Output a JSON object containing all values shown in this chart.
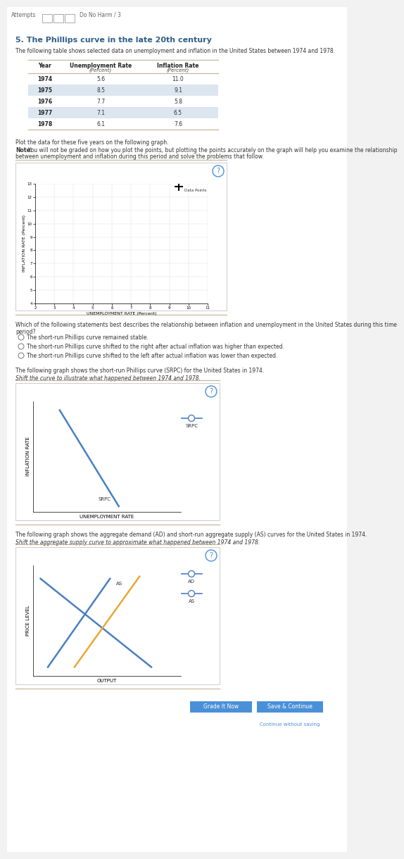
{
  "title": "5. The Phillips curve in the late 20th century",
  "intro_text": "The following table shows selected data on unemployment and inflation in the United States between 1974 and 1978.",
  "table_data": [
    [
      "1974",
      "5.6",
      "11.0"
    ],
    [
      "1975",
      "8.5",
      "9.1"
    ],
    [
      "1976",
      "7.7",
      "5.8"
    ],
    [
      "1977",
      "7.1",
      "6.5"
    ],
    [
      "1978",
      "6.1",
      "7.6"
    ]
  ],
  "highlighted_rows": [
    1,
    3
  ],
  "plot_note": "Plot the data for these five years on the following graph.",
  "bold_note": "Note:",
  "note_text": " You will not be graded on how you plot the points, but plotting the points accurately on the graph will help you examine the relationship between unemployment and inflation during this period and solve the problems that follow.",
  "scatter_xlabel": "UNEMPLOYMENT RATE (Percent)",
  "scatter_ylabel": "INFLATION RATE (Percent)",
  "mc_question": "Which of the following statements best describes the relationship between inflation and unemployment in the United States during this time period?",
  "mc_options": [
    "The short-run Phillips curve remained stable.",
    "The short-run Phillips curve shifted to the right after actual inflation was higher than expected.",
    "The short-run Phillips curve shifted to the left after actual inflation was lower than expected."
  ],
  "srpc_intro": "The following graph shows the short-run Phillips curve (SRPC) for the United States in 1974.",
  "srpc_shift_text": "Shift the curve to illustrate what happened between 1974 and 1978.",
  "srpc_xlabel": "UNEMPLOYMENT RATE",
  "srpc_ylabel": "INFLATION RATE",
  "as_intro": "The following graph shows the aggregate demand (AD) and short-run aggregate supply (AS) curves for the United States in 1974.",
  "as_shift_text": "Shift the aggregate supply curve to approximate what happened between 1974 and 1978.",
  "as_xlabel": "OUTPUT",
  "as_ylabel": "PRICE LEVEL",
  "bg_color": "#ffffff",
  "page_bg": "#f2f2f2",
  "highlight_row_color": "#dce6f0",
  "blue_color": "#4a7fc1",
  "orange_color": "#e8a835",
  "btn_color": "#4a90d9",
  "header_color": "#2e5f8a",
  "table_line_color": "#c8b89a"
}
